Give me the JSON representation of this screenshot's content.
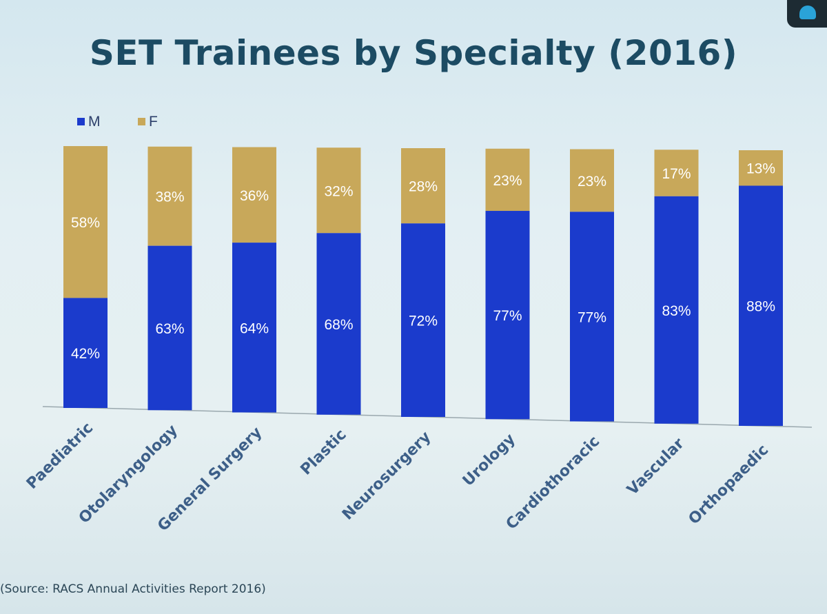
{
  "page": {
    "title": "SET Trainees by Specialty (2016)",
    "source": "(Source: RACS Annual Activities Report 2016)"
  },
  "colors": {
    "male": "#1b3bcc",
    "female": "#c8a85a",
    "axis": "#9aa8ae"
  },
  "chart_data": {
    "type": "bar",
    "stacked": true,
    "title": "SET Trainees by Specialty (2016)",
    "categories": [
      "Paediatric",
      "Otolaryngology",
      "General Surgery",
      "Plastic",
      "Neurosurgery",
      "Urology",
      "Cardiothoracic",
      "Vascular",
      "Orthopaedic"
    ],
    "series": [
      {
        "name": "M",
        "values": [
          42,
          63,
          64,
          68,
          72,
          77,
          77,
          83,
          88
        ],
        "labels": [
          "42%",
          "63%",
          "64%",
          "68%",
          "72%",
          "77%",
          "77%",
          "83%",
          "88%"
        ]
      },
      {
        "name": "F",
        "values": [
          58,
          38,
          36,
          32,
          28,
          23,
          23,
          17,
          13
        ],
        "labels": [
          "58%",
          "38%",
          "36%",
          "32%",
          "28%",
          "23%",
          "23%",
          "17%",
          "13%"
        ]
      }
    ],
    "legend_position": "top-left",
    "grid": false,
    "ylim": [
      0,
      100
    ]
  }
}
